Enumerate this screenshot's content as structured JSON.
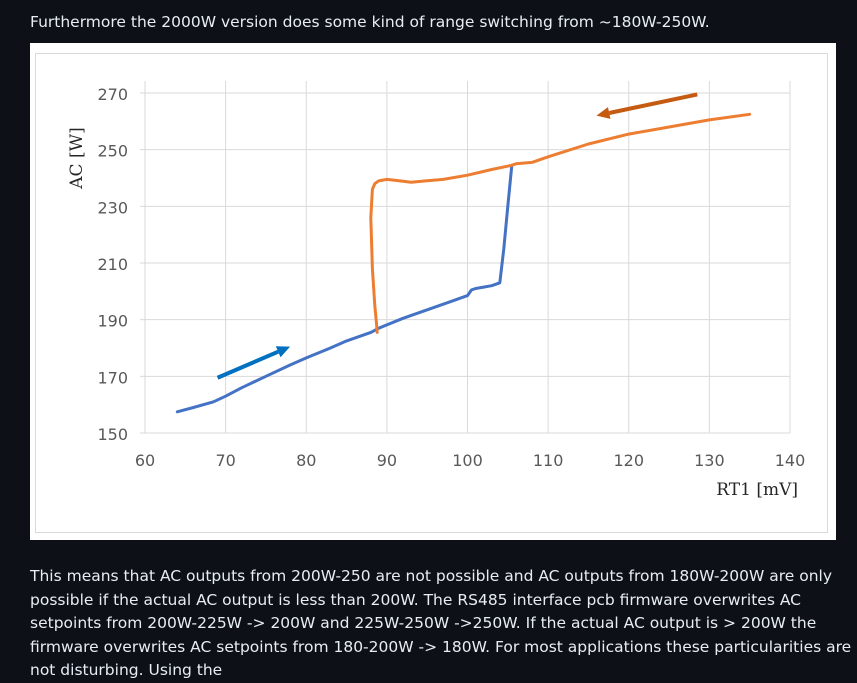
{
  "article": {
    "intro": "Furthermore the 2000W version does some kind of range switching from ~180W-250W.",
    "followup": "This means that AC outputs from 200W-250 are not possible and AC outputs from 180W-200W are only possible if the actual AC output is less than 200W. The RS485 interface pcb firmware overwrites AC setpoints from 200W-225W -> 200W and 225W-250W ->250W. If the actual AC output is > 200W the firmware overwrites AC setpoints from 180-200W -> 180W. For most applications these particularities are not disturbing. Using the"
  },
  "chart_data": {
    "type": "line",
    "title": "",
    "xlabel": "RT1 [mV]",
    "ylabel": "AC [W]",
    "xlim": [
      60,
      140
    ],
    "ylim": [
      150,
      270
    ],
    "xticks": [
      60,
      70,
      80,
      90,
      100,
      110,
      120,
      130,
      140
    ],
    "yticks": [
      150,
      170,
      190,
      210,
      230,
      250,
      270
    ],
    "grid": true,
    "legend": "none",
    "series": [
      {
        "color": "#4472c4",
        "direction": "increasing",
        "x": [
          64,
          66,
          68.5,
          70,
          72,
          75,
          78,
          80,
          83,
          85,
          88,
          89,
          92,
          95,
          98,
          100,
          100.5,
          101,
          102,
          103,
          104,
          104.5,
          105,
          105.5
        ],
        "y": [
          157.5,
          159,
          161,
          163,
          166,
          170,
          174,
          176.5,
          180,
          182.5,
          185.5,
          187,
          190.5,
          193.5,
          196.5,
          198.5,
          200.5,
          201,
          201.5,
          202,
          203,
          215,
          230,
          244.5
        ]
      },
      {
        "color": "#ed7d31",
        "direction": "decreasing",
        "x": [
          135,
          130,
          125,
          120,
          115,
          110,
          108,
          106,
          105.5,
          103,
          100,
          97,
          95,
          93,
          91.5,
          90,
          89,
          88.5,
          88.2,
          88,
          88.2,
          88.5,
          88.7,
          88.8
        ],
        "y": [
          262.5,
          260.5,
          258,
          255.5,
          252,
          247.5,
          245.5,
          245,
          244.5,
          243,
          241,
          239.5,
          239,
          238.5,
          239,
          239.5,
          239,
          238,
          236,
          226,
          208,
          195,
          189,
          185.5
        ]
      }
    ],
    "annotations": [
      {
        "type": "arrow",
        "color": "#0070c0",
        "from": [
          69,
          169.5
        ],
        "to": [
          78,
          180.5
        ]
      },
      {
        "type": "arrow",
        "color": "#c55a11",
        "from": [
          128.5,
          269.5
        ],
        "to": [
          116,
          262
        ]
      }
    ]
  }
}
